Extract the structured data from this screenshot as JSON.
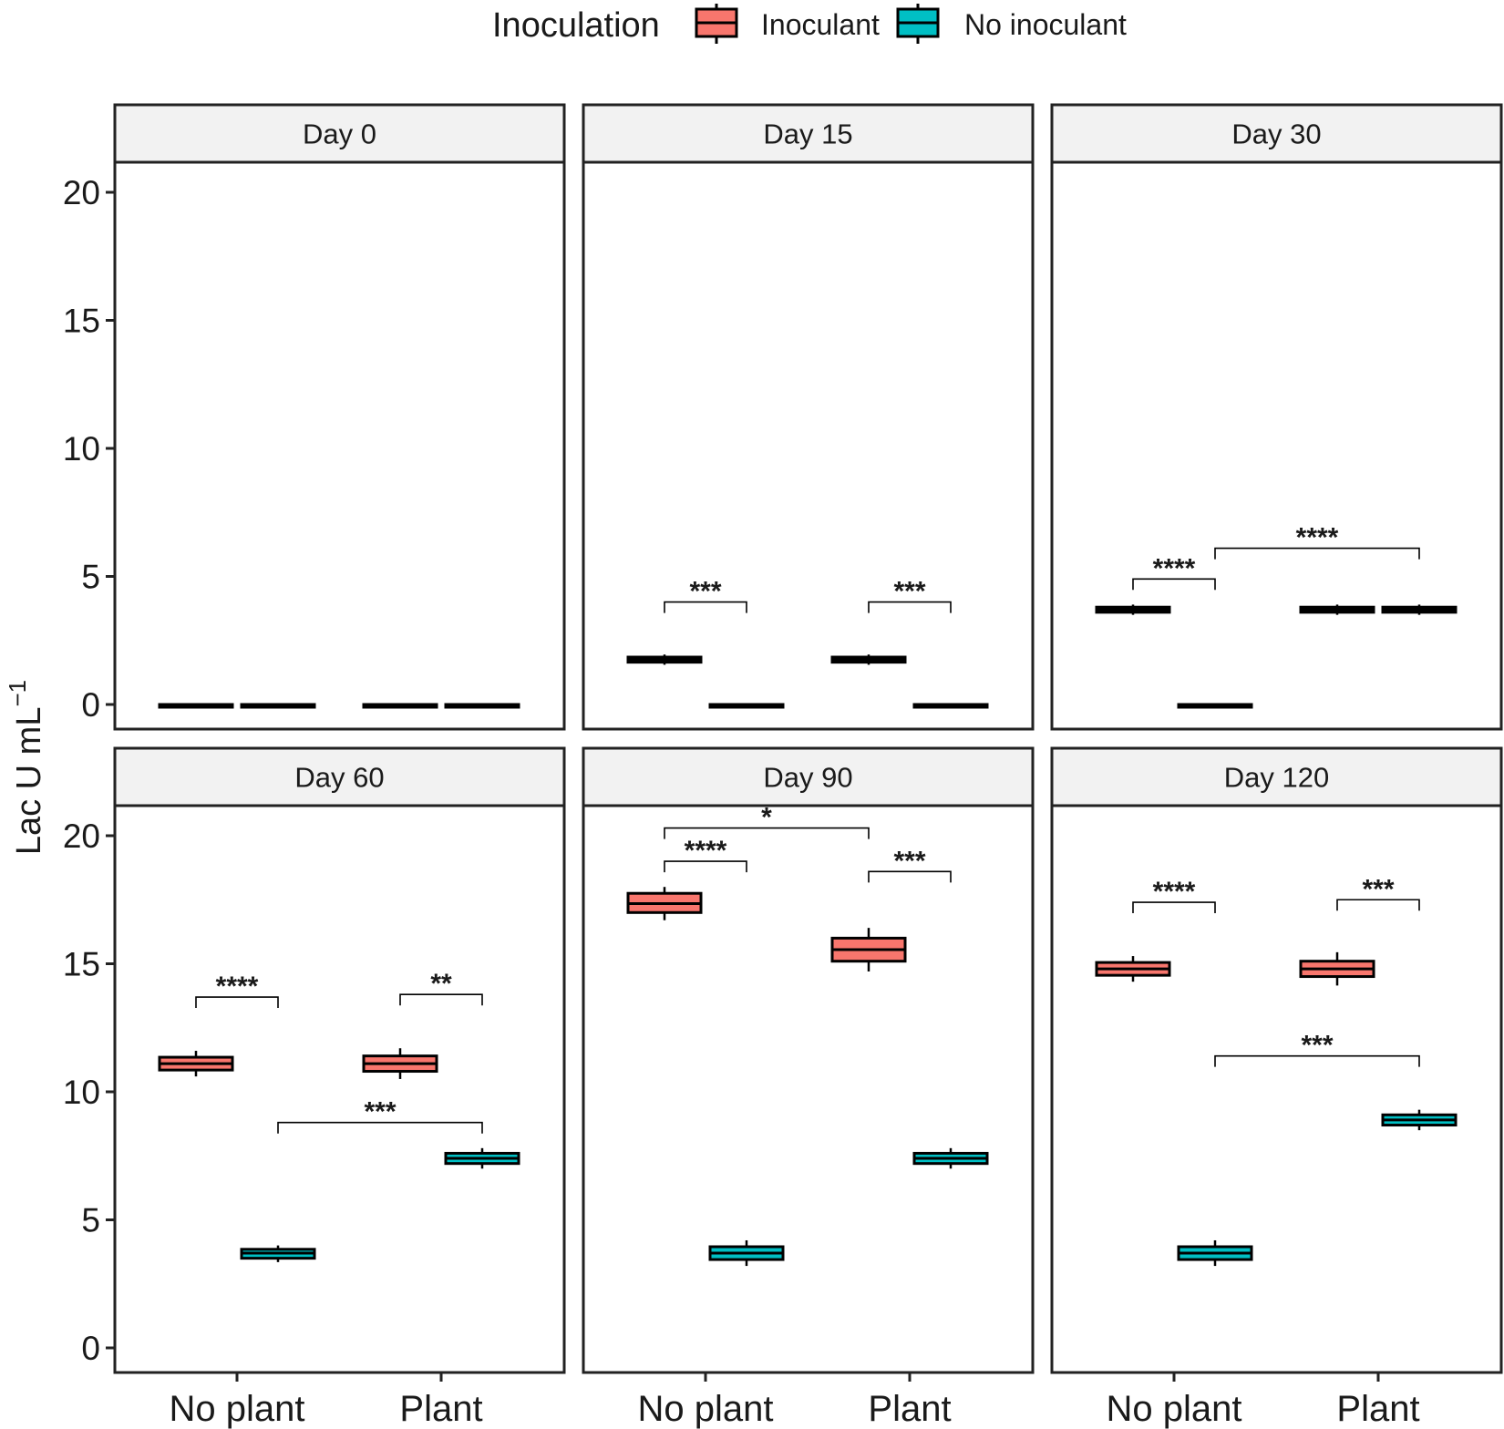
{
  "chart_data": {
    "type": "boxplot",
    "ylabel": "Lac U mL",
    "ylabel_superscript": "−1",
    "ylim": [
      -1,
      21.5
    ],
    "yticks": [
      0,
      5,
      10,
      15,
      20
    ],
    "categories": [
      "No plant",
      "Plant"
    ],
    "legend": {
      "title": "Inoculation",
      "position": "top",
      "entries": [
        {
          "name": "Inoculant",
          "color": "#F8766D"
        },
        {
          "name": "No inoculant",
          "color": "#00BFC4"
        }
      ]
    },
    "panels": [
      {
        "label": "Day 0",
        "boxes": [
          {
            "category": "No plant",
            "series": "Inoculant",
            "q1": 0,
            "median": 0,
            "q3": 0,
            "lower": 0,
            "upper": 0,
            "color": "#000000"
          },
          {
            "category": "No plant",
            "series": "No inoculant",
            "q1": 0,
            "median": 0,
            "q3": 0,
            "lower": 0,
            "upper": 0,
            "color": "#000000"
          },
          {
            "category": "Plant",
            "series": "Inoculant",
            "q1": 0,
            "median": 0,
            "q3": 0,
            "lower": 0,
            "upper": 0,
            "color": "#000000"
          },
          {
            "category": "Plant",
            "series": "No inoculant",
            "q1": 0,
            "median": 0,
            "q3": 0,
            "lower": 0,
            "upper": 0,
            "color": "#000000"
          }
        ],
        "annotations": []
      },
      {
        "label": "Day 15",
        "boxes": [
          {
            "category": "No plant",
            "series": "Inoculant",
            "q1": 1.65,
            "median": 1.75,
            "q3": 1.85,
            "lower": 1.55,
            "upper": 1.95,
            "color": "#000000"
          },
          {
            "category": "No plant",
            "series": "No inoculant",
            "q1": 0,
            "median": 0,
            "q3": 0,
            "lower": 0,
            "upper": 0,
            "color": "#000000"
          },
          {
            "category": "Plant",
            "series": "Inoculant",
            "q1": 1.65,
            "median": 1.75,
            "q3": 1.85,
            "lower": 1.55,
            "upper": 1.95,
            "color": "#000000"
          },
          {
            "category": "Plant",
            "series": "No inoculant",
            "q1": 0,
            "median": 0,
            "q3": 0,
            "lower": 0,
            "upper": 0,
            "color": "#000000"
          }
        ],
        "annotations": [
          {
            "from": "No plant:Inoculant",
            "to": "No plant:No inoculant",
            "y": 4.0,
            "label": "***"
          },
          {
            "from": "Plant:Inoculant",
            "to": "Plant:No inoculant",
            "y": 4.0,
            "label": "***"
          }
        ]
      },
      {
        "label": "Day 30",
        "boxes": [
          {
            "category": "No plant",
            "series": "Inoculant",
            "q1": 3.6,
            "median": 3.7,
            "q3": 3.8,
            "lower": 3.5,
            "upper": 3.9,
            "color": "#000000"
          },
          {
            "category": "No plant",
            "series": "No inoculant",
            "q1": 0,
            "median": 0,
            "q3": 0,
            "lower": 0,
            "upper": 0,
            "color": "#000000"
          },
          {
            "category": "Plant",
            "series": "Inoculant",
            "q1": 3.6,
            "median": 3.7,
            "q3": 3.8,
            "lower": 3.5,
            "upper": 3.9,
            "color": "#000000"
          },
          {
            "category": "Plant",
            "series": "No inoculant",
            "q1": 3.6,
            "median": 3.7,
            "q3": 3.8,
            "lower": 3.5,
            "upper": 3.9,
            "color": "#000000"
          }
        ],
        "annotations": [
          {
            "from": "No plant:Inoculant",
            "to": "No plant:No inoculant",
            "y": 4.9,
            "label": "****"
          },
          {
            "from": "No plant:No inoculant",
            "to": "Plant:No inoculant",
            "y": 6.1,
            "label": "****"
          }
        ]
      },
      {
        "label": "Day 60",
        "boxes": [
          {
            "category": "No plant",
            "series": "Inoculant",
            "q1": 10.85,
            "median": 11.1,
            "q3": 11.35,
            "lower": 10.6,
            "upper": 11.6,
            "color": "#F8766D"
          },
          {
            "category": "No plant",
            "series": "No inoculant",
            "q1": 3.5,
            "median": 3.7,
            "q3": 3.85,
            "lower": 3.35,
            "upper": 4.0,
            "color": "#00BFC4"
          },
          {
            "category": "Plant",
            "series": "Inoculant",
            "q1": 10.8,
            "median": 11.1,
            "q3": 11.4,
            "lower": 10.5,
            "upper": 11.7,
            "color": "#F8766D"
          },
          {
            "category": "Plant",
            "series": "No inoculant",
            "q1": 7.2,
            "median": 7.4,
            "q3": 7.6,
            "lower": 7.0,
            "upper": 7.8,
            "color": "#00BFC4"
          }
        ],
        "annotations": [
          {
            "from": "No plant:Inoculant",
            "to": "No plant:No inoculant",
            "y": 13.7,
            "label": "****"
          },
          {
            "from": "Plant:Inoculant",
            "to": "Plant:No inoculant",
            "y": 13.8,
            "label": "**"
          },
          {
            "from": "No plant:No inoculant",
            "to": "Plant:No inoculant",
            "y": 8.8,
            "label": "***"
          }
        ]
      },
      {
        "label": "Day 90",
        "boxes": [
          {
            "category": "No plant",
            "series": "Inoculant",
            "q1": 17.0,
            "median": 17.35,
            "q3": 17.75,
            "lower": 16.7,
            "upper": 18.0,
            "color": "#F8766D"
          },
          {
            "category": "No plant",
            "series": "No inoculant",
            "q1": 3.45,
            "median": 3.7,
            "q3": 3.95,
            "lower": 3.2,
            "upper": 4.2,
            "color": "#00BFC4"
          },
          {
            "category": "Plant",
            "series": "Inoculant",
            "q1": 15.1,
            "median": 15.55,
            "q3": 16.0,
            "lower": 14.7,
            "upper": 16.4,
            "color": "#F8766D"
          },
          {
            "category": "Plant",
            "series": "No inoculant",
            "q1": 7.2,
            "median": 7.4,
            "q3": 7.6,
            "lower": 7.0,
            "upper": 7.8,
            "color": "#00BFC4"
          }
        ],
        "annotations": [
          {
            "from": "No plant:Inoculant",
            "to": "No plant:No inoculant",
            "y": 19.0,
            "label": "****"
          },
          {
            "from": "No plant:Inoculant",
            "to": "Plant:Inoculant",
            "y": 20.3,
            "label": "*"
          },
          {
            "from": "Plant:Inoculant",
            "to": "Plant:No inoculant",
            "y": 18.6,
            "label": "***"
          }
        ]
      },
      {
        "label": "Day 120",
        "boxes": [
          {
            "category": "No plant",
            "series": "Inoculant",
            "q1": 14.55,
            "median": 14.8,
            "q3": 15.05,
            "lower": 14.3,
            "upper": 15.3,
            "color": "#F8766D"
          },
          {
            "category": "No plant",
            "series": "No inoculant",
            "q1": 3.45,
            "median": 3.7,
            "q3": 3.95,
            "lower": 3.2,
            "upper": 4.2,
            "color": "#00BFC4"
          },
          {
            "category": "Plant",
            "series": "Inoculant",
            "q1": 14.5,
            "median": 14.8,
            "q3": 15.1,
            "lower": 14.15,
            "upper": 15.45,
            "color": "#F8766D"
          },
          {
            "category": "Plant",
            "series": "No inoculant",
            "q1": 8.7,
            "median": 8.9,
            "q3": 9.1,
            "lower": 8.5,
            "upper": 9.3,
            "color": "#00BFC4"
          }
        ],
        "annotations": [
          {
            "from": "No plant:Inoculant",
            "to": "No plant:No inoculant",
            "y": 17.4,
            "label": "****"
          },
          {
            "from": "Plant:Inoculant",
            "to": "Plant:No inoculant",
            "y": 17.5,
            "label": "***"
          },
          {
            "from": "No plant:No inoculant",
            "to": "Plant:No inoculant",
            "y": 11.4,
            "label": "***"
          }
        ]
      }
    ]
  }
}
